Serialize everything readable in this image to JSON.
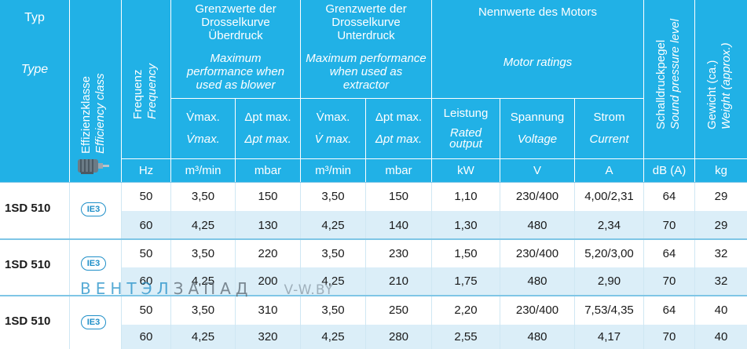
{
  "header": {
    "typ_de": "Typ",
    "typ_en": "Type",
    "eff_de": "Effizienzklasse",
    "eff_en": "Efficiency class",
    "freq_de": "Frequenz",
    "freq_en": "Frequency",
    "blower_de": "Grenzwerte der Drosselkurve Überdruck",
    "blower_en": "Maximum performance when used as blower",
    "extractor_de": "Grenzwerte der Drosselkurve Unterdruck",
    "extractor_en": "Maximum performance when used as extractor",
    "motor_de": "Nennwerte des Motors",
    "motor_en": "Motor ratings",
    "sound_de": "Schalldruckpegel",
    "sound_en": "Sound pressure level",
    "weight_de": "Gewicht (ca.)",
    "weight_en": "Weight (approx.)",
    "vmax_de": "V̇max.",
    "vmax_en": "V̇max.",
    "dp_de": "Δpt max.",
    "dp_en": "Δpt max.",
    "vmax2_en": "V̇ max.",
    "leistung": "Leistung",
    "rated_output": "Rated output",
    "spannung": "Spannung",
    "voltage": "Voltage",
    "strom": "Strom",
    "current": "Current"
  },
  "units": [
    "Hz",
    "m³/min",
    "mbar",
    "m³/min",
    "mbar",
    "kW",
    "V",
    "A",
    "dB (A)",
    "kg"
  ],
  "groups": [
    {
      "model": "1SD 510",
      "badge": "IE3",
      "rows": [
        [
          "50",
          "3,50",
          "150",
          "3,50",
          "150",
          "1,10",
          "230/400",
          "4,00/2,31",
          "64",
          "29"
        ],
        [
          "60",
          "4,25",
          "130",
          "4,25",
          "140",
          "1,30",
          "480",
          "2,34",
          "70",
          "29"
        ]
      ]
    },
    {
      "model": "1SD 510",
      "badge": "IE3",
      "rows": [
        [
          "50",
          "3,50",
          "220",
          "3,50",
          "230",
          "1,50",
          "230/400",
          "5,20/3,00",
          "64",
          "32"
        ],
        [
          "60",
          "4,25",
          "200",
          "4,25",
          "210",
          "1,75",
          "480",
          "2,90",
          "70",
          "32"
        ]
      ]
    },
    {
      "model": "1SD 510",
      "badge": "IE3",
      "rows": [
        [
          "50",
          "3,50",
          "310",
          "3,50",
          "250",
          "2,20",
          "230/400",
          "7,53/4,35",
          "64",
          "40"
        ],
        [
          "60",
          "4,25",
          "320",
          "4,25",
          "280",
          "2,55",
          "480",
          "4,17",
          "70",
          "40"
        ]
      ]
    }
  ],
  "watermark": {
    "brand_a": "ВЕНТЭЛ",
    "brand_b": "ЗАПАД",
    "url": "V-W.BY"
  },
  "colors": {
    "header_bg": "#21b1e6",
    "row_tint": "#dbeef8",
    "badge": "#1f8fc8"
  }
}
